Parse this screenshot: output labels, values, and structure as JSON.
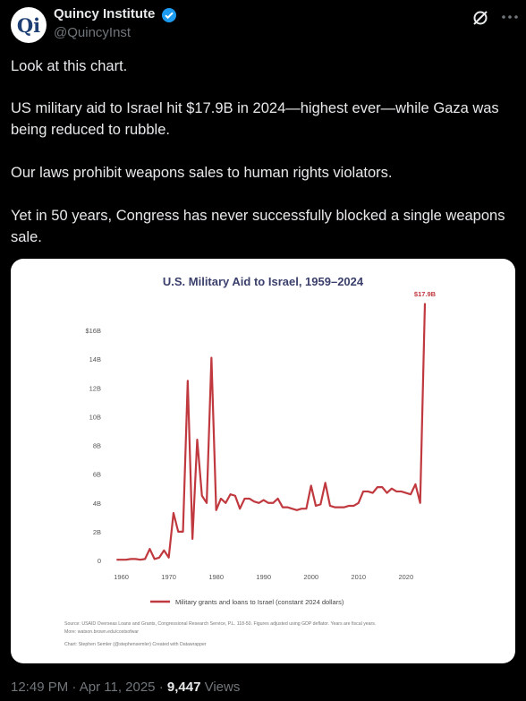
{
  "header": {
    "avatar": "Qi",
    "name": "Quincy Institute",
    "handle": "@QuincyInst"
  },
  "tweet": {
    "paragraphs": [
      "Look at this chart.",
      "US military aid to Israel hit $17.9B in 2024—highest ever—while Gaza was being reduced to rubble.",
      "Our laws prohibit weapons sales to human rights violators.",
      "Yet in 50 years, Congress has never successfully blocked a single weapons sale."
    ]
  },
  "chart_data": {
    "type": "line",
    "title": "U.S. Military Aid to Israel, 1959–2024",
    "annotation": "$17.9B",
    "x": [
      1959,
      1960,
      1961,
      1962,
      1963,
      1964,
      1965,
      1966,
      1967,
      1968,
      1969,
      1970,
      1971,
      1972,
      1973,
      1974,
      1975,
      1976,
      1977,
      1978,
      1979,
      1980,
      1981,
      1982,
      1983,
      1984,
      1985,
      1986,
      1987,
      1988,
      1989,
      1990,
      1991,
      1992,
      1993,
      1994,
      1995,
      1996,
      1997,
      1998,
      1999,
      2000,
      2001,
      2002,
      2003,
      2004,
      2005,
      2006,
      2007,
      2008,
      2009,
      2010,
      2011,
      2012,
      2013,
      2014,
      2015,
      2016,
      2017,
      2018,
      2019,
      2020,
      2021,
      2022,
      2023,
      2024
    ],
    "series": [
      {
        "name": "Military grants and loans to Israel (constant 2024 dollars)",
        "color": "#c0393f",
        "values": [
          0.05,
          0.05,
          0.05,
          0.1,
          0.1,
          0.05,
          0.1,
          0.8,
          0.1,
          0.2,
          0.7,
          0.2,
          3.3,
          2.0,
          2.0,
          12.5,
          1.5,
          8.4,
          4.5,
          4.0,
          14.1,
          3.5,
          4.3,
          4.0,
          4.6,
          4.5,
          3.6,
          4.3,
          4.3,
          4.1,
          4.0,
          4.2,
          4.0,
          4.0,
          4.3,
          3.7,
          3.7,
          3.6,
          3.5,
          3.6,
          3.6,
          5.2,
          3.8,
          3.9,
          5.4,
          3.8,
          3.7,
          3.7,
          3.7,
          3.8,
          3.8,
          4.0,
          4.8,
          4.8,
          4.7,
          5.1,
          5.1,
          4.7,
          5.0,
          4.8,
          4.8,
          4.7,
          4.6,
          5.3,
          4.0,
          17.9
        ]
      }
    ],
    "xlim": [
      1958,
      2024
    ],
    "xticks": [
      1960,
      1970,
      1980,
      1990,
      2000,
      2010,
      2020
    ],
    "ylim": [
      0,
      18
    ],
    "yticks": [
      0,
      {
        "value": 2,
        "label": "2B"
      },
      {
        "value": 4,
        "label": "4B"
      },
      {
        "value": 6,
        "label": "6B"
      },
      {
        "value": 8,
        "label": "8B"
      },
      {
        "value": 10,
        "label": "10B"
      },
      {
        "value": 12,
        "label": "12B"
      },
      {
        "value": 14,
        "label": "14B"
      },
      {
        "value": 16,
        "label": "$16B"
      }
    ],
    "grid": false,
    "source": "Source: USAID Overseas Loans and Grants, Congressional Research Service, P.L. 118-50. Figures adjusted using GDP deflator. Years are fiscal years.",
    "more": "More: watson.brown.edu/costsofwar",
    "credit": "Chart: Stephen Semler (@stephensemler) Created with Datawrapper"
  },
  "footer": {
    "time": "12:49 PM",
    "separator": "·",
    "date": "Apr 11, 2025",
    "views": "9,447",
    "views_label": "Views"
  }
}
